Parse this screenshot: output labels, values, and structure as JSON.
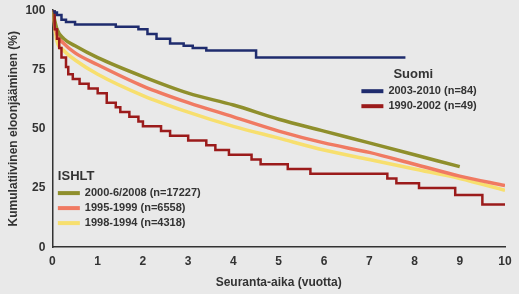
{
  "chart_data": {
    "type": "line",
    "x_label": "Seuranta-aika (vuotta)",
    "y_label": "Kumulatiivinen eloonjääminen (%)",
    "xlim": [
      0,
      10
    ],
    "xticks": [
      0,
      1,
      2,
      3,
      4,
      5,
      6,
      7,
      8,
      9,
      10
    ],
    "ylim": [
      0,
      100
    ],
    "yticks": [
      0,
      25,
      50,
      75,
      100
    ],
    "grid": false,
    "series": [
      {
        "name": "2003-2010 (n=84)",
        "group": "Suomi",
        "color": "#1f2c6e",
        "line_style": "step",
        "x": [
          0,
          0.05,
          0.1,
          0.2,
          0.3,
          0.5,
          1.4,
          1.9,
          2.1,
          2.3,
          2.6,
          2.9,
          3.1,
          3.4,
          4.5,
          7.8
        ],
        "values": [
          100,
          99,
          98,
          96,
          95,
          94,
          93,
          92,
          90,
          88,
          86,
          85,
          84,
          83,
          80,
          80
        ]
      },
      {
        "name": "1990-2002 (n=49)",
        "group": "Suomi",
        "color": "#9b1b1b",
        "line_style": "step",
        "x": [
          0,
          0.05,
          0.1,
          0.15,
          0.2,
          0.3,
          0.35,
          0.45,
          0.6,
          0.8,
          1.0,
          1.2,
          1.4,
          1.5,
          1.7,
          1.9,
          2.0,
          2.4,
          2.6,
          3.0,
          3.4,
          3.6,
          3.9,
          4.4,
          4.6,
          5.2,
          5.7,
          7.4,
          7.6,
          8.1,
          8.9,
          9.5,
          10
        ],
        "values": [
          100,
          92,
          88,
          84,
          80,
          76,
          73,
          71,
          69,
          67,
          65,
          61,
          59,
          57,
          55,
          53,
          51,
          49,
          47,
          45,
          43,
          41,
          39,
          37,
          35,
          33,
          31,
          29,
          27,
          25,
          22,
          18,
          18
        ]
      },
      {
        "name": "2000-6/2008 (n=17227)",
        "group": "ISHLT",
        "color": "#8f8f2c",
        "line_style": "solid",
        "x": [
          0,
          0.1,
          0.25,
          0.5,
          1,
          2,
          3,
          4,
          5,
          6,
          7,
          8,
          9
        ],
        "values": [
          100,
          92,
          88,
          85,
          80,
          72,
          65,
          60,
          54,
          49,
          44,
          39,
          34
        ]
      },
      {
        "name": "1995-1999 (n=6558)",
        "group": "ISHLT",
        "color": "#f07a62",
        "line_style": "solid",
        "x": [
          0,
          0.1,
          0.25,
          0.5,
          1,
          2,
          3,
          4,
          5,
          6,
          7,
          8,
          9,
          10
        ],
        "values": [
          100,
          90,
          86,
          82,
          77,
          68,
          61,
          55,
          49,
          44,
          40,
          35,
          30,
          26
        ]
      },
      {
        "name": "1998-1994 (n=4318)",
        "group": "ISHLT",
        "color": "#f7df6e",
        "line_style": "solid",
        "x": [
          0,
          0.1,
          0.25,
          0.5,
          1,
          2,
          3,
          4,
          5,
          6,
          7,
          8,
          9,
          10
        ],
        "values": [
          100,
          87,
          83,
          79,
          73,
          64,
          57,
          51,
          46,
          41,
          37,
          33,
          29,
          24
        ]
      }
    ]
  }
}
